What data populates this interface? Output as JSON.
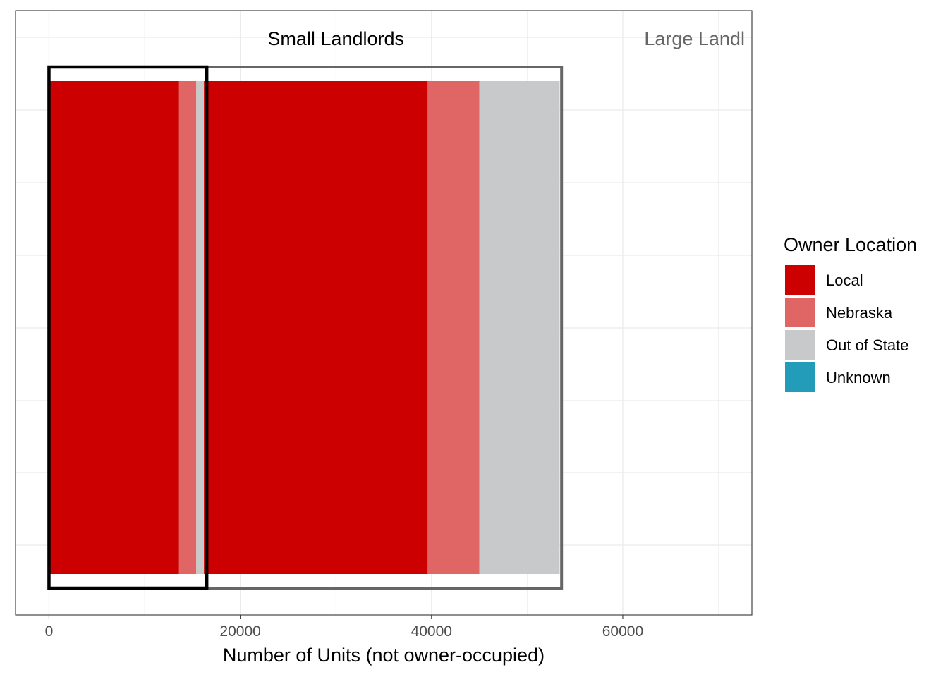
{
  "chart_data": {
    "type": "bar",
    "orientation": "horizontal",
    "stacked": true,
    "xlabel": "Number of Units (not owner-occupied)",
    "ylabel": "",
    "xlim": [
      -3500,
      73500
    ],
    "x_ticks": [
      0,
      20000,
      40000,
      60000
    ],
    "x_tick_labels": [
      "0",
      "20000",
      "40000",
      "60000"
    ],
    "grid": true,
    "legend": {
      "title": "Owner Location",
      "position": "right",
      "entries": [
        {
          "label": "Local",
          "color": "#CC0000"
        },
        {
          "label": "Nebraska",
          "color": "#E06666"
        },
        {
          "label": "Out of State",
          "color": "#C8C9CB"
        },
        {
          "label": "Unknown",
          "color": "#229CB8"
        }
      ]
    },
    "segments": [
      {
        "category": "Local",
        "start": 0,
        "end": 13600
      },
      {
        "category": "Nebraska",
        "start": 13600,
        "end": 15400
      },
      {
        "category": "Out of State",
        "start": 15400,
        "end": 16200
      },
      {
        "category": "Local",
        "start": 16200,
        "end": 39600
      },
      {
        "category": "Nebraska",
        "start": 39600,
        "end": 45000
      },
      {
        "category": "Out of State",
        "start": 45000,
        "end": 53400
      }
    ],
    "annotations": [
      {
        "label": "Small Landlords",
        "range": [
          0,
          16500
        ],
        "text_x": 30000,
        "color": "#000000"
      },
      {
        "label": "Large Landl",
        "range": [
          0,
          53600
        ],
        "text_x": 67500,
        "color": "#666666"
      }
    ]
  }
}
